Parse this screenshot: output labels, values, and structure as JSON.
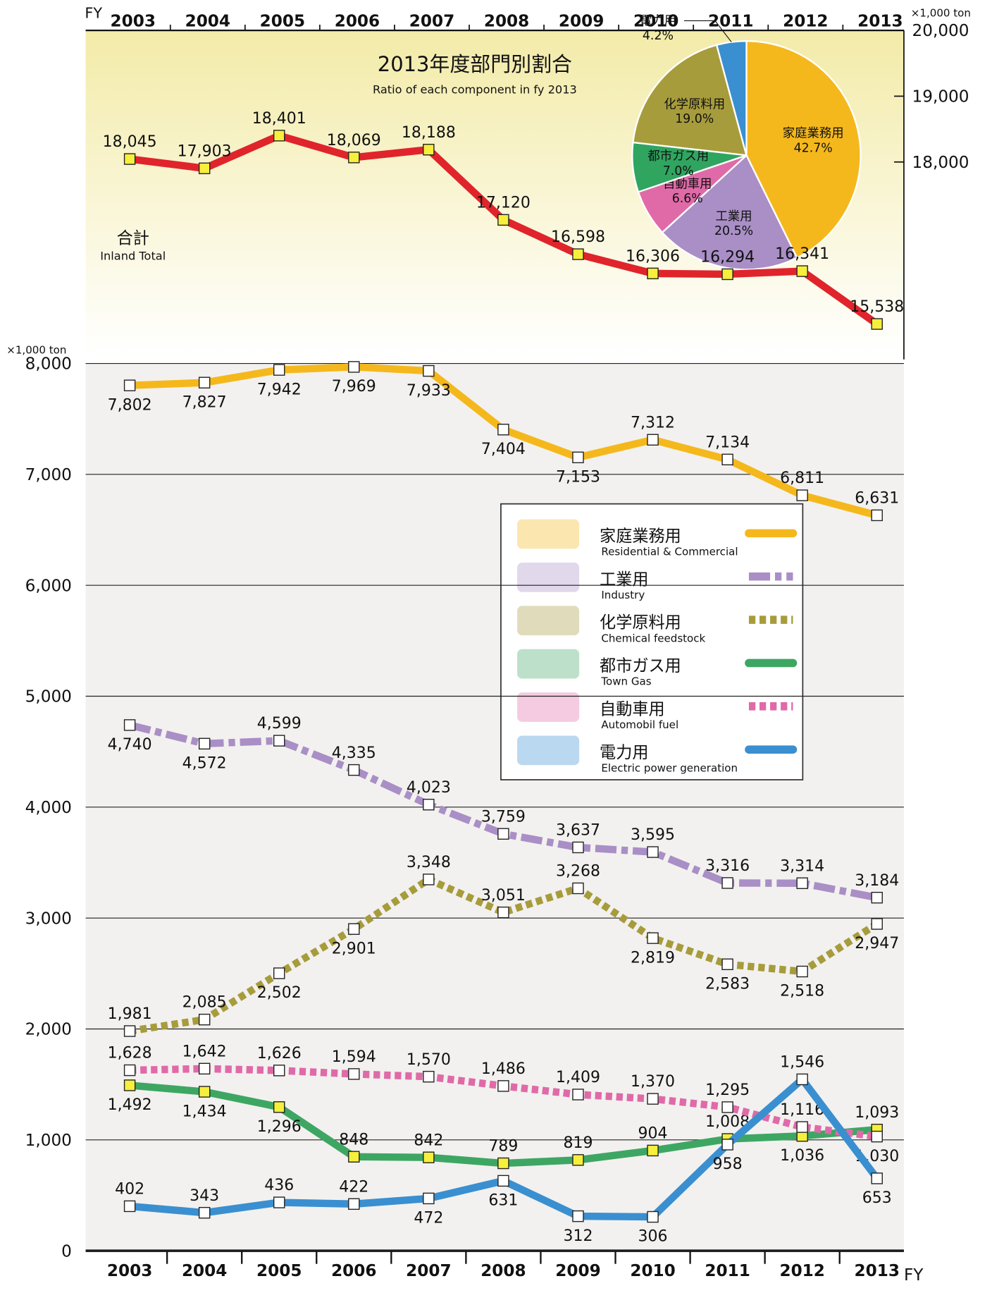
{
  "chart_data": [
    {
      "type": "line",
      "x_label": "FY",
      "y_unit": "×1,000 ton",
      "categories": [
        "2003",
        "2004",
        "2005",
        "2006",
        "2007",
        "2008",
        "2009",
        "2010",
        "2011",
        "2012",
        "2013"
      ],
      "ylim": [
        15000,
        20000
      ],
      "yticks": [
        {
          "value": 18000,
          "label": "18,000"
        },
        {
          "value": 19000,
          "label": "19,000"
        },
        {
          "value": 20000,
          "label": "20,000"
        }
      ],
      "series": [
        {
          "name": "合計",
          "name_en": "Inland Total",
          "color": "#e0242b",
          "marker_color": "#f6ef3c",
          "style": "solid",
          "values": [
            18045,
            17903,
            18401,
            18069,
            18188,
            17120,
            16598,
            16306,
            16294,
            16341,
            15538
          ],
          "value_labels": [
            "18,045",
            "17,903",
            "18,401",
            "18,069",
            "18,188",
            "17,120",
            "16,598",
            "16,306",
            "16,294",
            "16,341",
            "15,538"
          ]
        }
      ]
    },
    {
      "type": "line",
      "x_label": "FY",
      "y_unit": "×1,000 ton",
      "grid": true,
      "categories": [
        "2003",
        "2004",
        "2005",
        "2006",
        "2007",
        "2008",
        "2009",
        "2010",
        "2011",
        "2012",
        "2013"
      ],
      "ylim": [
        0,
        8000
      ],
      "yticks": [
        0,
        {
          "value": 1000,
          "label": "1,000"
        },
        {
          "value": 2000,
          "label": "2,000"
        },
        {
          "value": 3000,
          "label": "3,000"
        },
        {
          "value": 4000,
          "label": "4,000"
        },
        {
          "value": 5000,
          "label": "5,000"
        },
        {
          "value": 6000,
          "label": "6,000"
        },
        {
          "value": 7000,
          "label": "7,000"
        },
        {
          "value": 8000,
          "label": "8,000"
        }
      ],
      "series": [
        {
          "name": "家庭業務用",
          "name_en": "Residential & Commercial",
          "color": "#f5b81c",
          "marker_color": "#ffffff",
          "style": "solid",
          "values": [
            7802,
            7827,
            7942,
            7969,
            7933,
            7404,
            7153,
            7312,
            7134,
            6811,
            6631
          ],
          "value_labels": [
            "7,802",
            "7,827",
            "7,942",
            "7,969",
            "7,933",
            "7,404",
            "7,153",
            "7,312",
            "7,134",
            "6,811",
            "6,631"
          ]
        },
        {
          "name": "工業用",
          "name_en": "Industry",
          "color": "#a98fc6",
          "marker_color": "#ffffff",
          "style": "dashdot",
          "values": [
            4740,
            4572,
            4599,
            4335,
            4023,
            3759,
            3637,
            3595,
            3316,
            3314,
            3184
          ],
          "value_labels": [
            "4,740",
            "4,572",
            "4,599",
            "4,335",
            "4,023",
            "3,759",
            "3,637",
            "3,595",
            "3,316",
            "3,314",
            "3,184"
          ]
        },
        {
          "name": "化学原料用",
          "name_en": "Chemical feedstock",
          "color": "#a79c3c",
          "marker_color": "#ffffff",
          "style": "dotted",
          "values": [
            1981,
            2085,
            2502,
            2901,
            3348,
            3051,
            3268,
            2819,
            2583,
            2518,
            2947
          ],
          "value_labels": [
            "1,981",
            "2,085",
            "2,502",
            "2,901",
            "3,348",
            "3,051",
            "3,268",
            "2,819",
            "2,583",
            "2,518",
            "2,947"
          ]
        },
        {
          "name": "都市ガス用",
          "name_en": "Town Gas",
          "color": "#3ea663",
          "marker_color": "#f6ef3c",
          "style": "solid",
          "values": [
            1492,
            1434,
            1296,
            848,
            842,
            789,
            819,
            904,
            1008,
            1036,
            1093
          ],
          "value_labels": [
            "1,492",
            "1,434",
            "1,296",
            "848",
            "842",
            "789",
            "819",
            "904",
            "1,008",
            "1,036",
            "1,093"
          ]
        },
        {
          "name": "自動車用",
          "name_en": "Automobil fuel",
          "color": "#e06aa8",
          "marker_color": "#ffffff",
          "style": "dotted",
          "values": [
            1628,
            1642,
            1626,
            1594,
            1570,
            1486,
            1409,
            1370,
            1295,
            1116,
            1030
          ],
          "value_labels": [
            "1,628",
            "1,642",
            "1,626",
            "1,594",
            "1,570",
            "1,486",
            "1,409",
            "1,370",
            "1,295",
            "1,116",
            "1,030"
          ]
        },
        {
          "name": "電力用",
          "name_en": "Electric power generation",
          "color": "#3a8fd0",
          "marker_color": "#ffffff",
          "style": "solid",
          "values": [
            402,
            343,
            436,
            422,
            472,
            631,
            312,
            306,
            958,
            1546,
            653
          ],
          "value_labels": [
            "402",
            "343",
            "436",
            "422",
            "472",
            "631",
            "312",
            "306",
            "958",
            "1,546",
            "653"
          ]
        }
      ]
    },
    {
      "type": "pie",
      "title": "2013年度部門別割合",
      "subtitle": "Ratio of each component in fy 2013",
      "categories": [
        "家庭業務用",
        "工業用",
        "自動車用",
        "都市ガス用",
        "化学原料用",
        "電力用"
      ],
      "values": [
        42.7,
        20.5,
        6.6,
        7.0,
        19.0,
        4.2
      ],
      "value_labels": [
        "42.7%",
        "20.5%",
        "6.6%",
        "7.0%",
        "19.0%",
        "4.2%"
      ],
      "colors": [
        "#f5b81c",
        "#a98fc6",
        "#e06aa8",
        "#2fa560",
        "#a79c3c",
        "#3a8fd0"
      ]
    }
  ]
}
